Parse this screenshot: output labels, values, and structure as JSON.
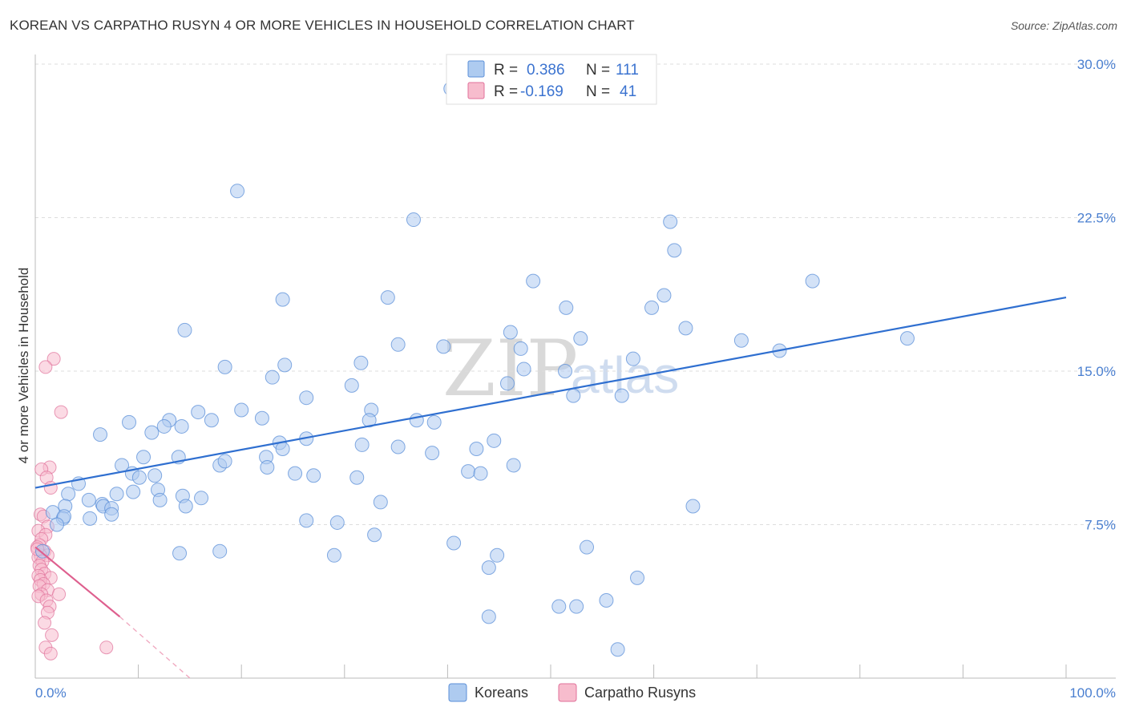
{
  "title": "KOREAN VS CARPATHO RUSYN 4 OR MORE VEHICLES IN HOUSEHOLD CORRELATION CHART",
  "source": "Source: ZipAtlas.com",
  "watermark": {
    "part1": "ZIP",
    "part2": "atlas"
  },
  "colors": {
    "blue": "#5b8fd8",
    "blue_fill": "#aecbf0",
    "pink": "#e0709a",
    "pink_fill": "#f7bccd",
    "tick": "#4a7fd0",
    "grid": "#dddddd"
  },
  "stats": [
    {
      "r_label": "R =",
      "r_value": "0.386",
      "n_label": "N =",
      "n_value": "111"
    },
    {
      "r_label": "R =",
      "r_value": "-0.169",
      "n_label": "N =",
      "n_value": "41"
    }
  ],
  "chart_data": {
    "type": "scatter",
    "xlabel": "",
    "ylabel": "4 or more Vehicles in Household",
    "xlim": [
      0,
      100
    ],
    "ylim": [
      0,
      30
    ],
    "x_tick_labels": [
      "0.0%",
      "100.0%"
    ],
    "y_ticks": [
      7.5,
      15.0,
      22.5,
      30.0
    ],
    "y_tick_labels": [
      "7.5%",
      "15.0%",
      "22.5%",
      "30.0%"
    ],
    "legend": [
      "Koreans",
      "Carpatho Rusyns"
    ],
    "series": [
      {
        "name": "Koreans",
        "r": 0.386,
        "n": 111,
        "trend": {
          "x0": 0,
          "y0": 9.3,
          "x1": 100,
          "y1": 18.6
        },
        "points": [
          [
            40.3,
            28.8
          ],
          [
            19.6,
            23.8
          ],
          [
            36.7,
            22.4
          ],
          [
            61.6,
            22.3
          ],
          [
            62.0,
            20.9
          ],
          [
            75.4,
            19.4
          ],
          [
            48.3,
            19.4
          ],
          [
            61.0,
            18.7
          ],
          [
            34.2,
            18.6
          ],
          [
            24.0,
            18.5
          ],
          [
            51.5,
            18.1
          ],
          [
            59.8,
            18.1
          ],
          [
            63.1,
            17.1
          ],
          [
            68.5,
            16.5
          ],
          [
            14.5,
            17.0
          ],
          [
            46.1,
            16.9
          ],
          [
            84.6,
            16.6
          ],
          [
            52.9,
            16.6
          ],
          [
            35.2,
            16.3
          ],
          [
            39.6,
            16.2
          ],
          [
            47.1,
            16.1
          ],
          [
            72.2,
            16.0
          ],
          [
            58.0,
            15.6
          ],
          [
            31.6,
            15.4
          ],
          [
            24.2,
            15.3
          ],
          [
            47.4,
            15.1
          ],
          [
            51.4,
            15.0
          ],
          [
            18.4,
            15.2
          ],
          [
            23.0,
            14.7
          ],
          [
            45.8,
            14.4
          ],
          [
            30.7,
            14.3
          ],
          [
            56.9,
            13.8
          ],
          [
            52.2,
            13.8
          ],
          [
            26.3,
            13.7
          ],
          [
            32.6,
            13.1
          ],
          [
            20.0,
            13.1
          ],
          [
            15.8,
            13.0
          ],
          [
            32.4,
            12.6
          ],
          [
            37.0,
            12.6
          ],
          [
            13.0,
            12.6
          ],
          [
            22.0,
            12.7
          ],
          [
            17.1,
            12.6
          ],
          [
            38.7,
            12.5
          ],
          [
            9.1,
            12.5
          ],
          [
            12.5,
            12.3
          ],
          [
            14.2,
            12.3
          ],
          [
            11.3,
            12.0
          ],
          [
            26.3,
            11.7
          ],
          [
            6.3,
            11.9
          ],
          [
            31.7,
            11.4
          ],
          [
            35.2,
            11.3
          ],
          [
            23.7,
            11.5
          ],
          [
            24.0,
            11.2
          ],
          [
            22.4,
            10.8
          ],
          [
            38.5,
            11.0
          ],
          [
            44.5,
            11.6
          ],
          [
            42.8,
            11.2
          ],
          [
            46.4,
            10.4
          ],
          [
            10.5,
            10.8
          ],
          [
            13.9,
            10.8
          ],
          [
            8.4,
            10.4
          ],
          [
            9.4,
            10.0
          ],
          [
            17.9,
            10.4
          ],
          [
            18.4,
            10.6
          ],
          [
            25.2,
            10.0
          ],
          [
            22.5,
            10.3
          ],
          [
            42.0,
            10.1
          ],
          [
            43.2,
            10.0
          ],
          [
            11.6,
            9.9
          ],
          [
            10.1,
            9.8
          ],
          [
            27.0,
            9.9
          ],
          [
            31.2,
            9.8
          ],
          [
            4.2,
            9.5
          ],
          [
            3.2,
            9.0
          ],
          [
            11.9,
            9.2
          ],
          [
            9.5,
            9.1
          ],
          [
            14.3,
            8.9
          ],
          [
            16.1,
            8.8
          ],
          [
            7.9,
            9.0
          ],
          [
            33.5,
            8.6
          ],
          [
            5.2,
            8.7
          ],
          [
            6.5,
            8.5
          ],
          [
            6.6,
            8.4
          ],
          [
            7.4,
            8.3
          ],
          [
            2.9,
            8.4
          ],
          [
            1.7,
            8.1
          ],
          [
            2.7,
            7.8
          ],
          [
            14.6,
            8.4
          ],
          [
            12.1,
            8.7
          ],
          [
            7.4,
            8.0
          ],
          [
            2.8,
            7.9
          ],
          [
            5.3,
            7.8
          ],
          [
            26.3,
            7.7
          ],
          [
            2.1,
            7.5
          ],
          [
            29.3,
            7.6
          ],
          [
            32.9,
            7.0
          ],
          [
            17.9,
            6.2
          ],
          [
            29.0,
            6.0
          ],
          [
            44.8,
            6.0
          ],
          [
            40.6,
            6.6
          ],
          [
            44.0,
            5.4
          ],
          [
            53.5,
            6.4
          ],
          [
            63.8,
            8.4
          ],
          [
            58.4,
            4.9
          ],
          [
            55.4,
            3.8
          ],
          [
            52.5,
            3.5
          ],
          [
            50.8,
            3.5
          ],
          [
            44.0,
            3.0
          ],
          [
            56.5,
            1.4
          ],
          [
            14.0,
            6.1
          ],
          [
            0.7,
            6.2
          ]
        ]
      },
      {
        "name": "Carpatho Rusyns",
        "r": -0.169,
        "n": 41,
        "trend": {
          "x0": 0,
          "y0": 6.4,
          "x1": 8.2,
          "y1": 3.0
        },
        "trend_dashed": {
          "x0": 8.2,
          "y0": 3.0,
          "x1": 15,
          "y1": 0.0
        },
        "points": [
          [
            1.8,
            15.6
          ],
          [
            1.0,
            15.2
          ],
          [
            2.5,
            13.0
          ],
          [
            1.4,
            10.3
          ],
          [
            0.6,
            10.2
          ],
          [
            1.1,
            9.8
          ],
          [
            1.5,
            9.3
          ],
          [
            0.5,
            8.0
          ],
          [
            0.8,
            7.9
          ],
          [
            1.2,
            7.4
          ],
          [
            0.3,
            7.2
          ],
          [
            1.0,
            7.0
          ],
          [
            0.6,
            6.8
          ],
          [
            0.4,
            6.5
          ],
          [
            0.2,
            6.4
          ],
          [
            0.9,
            6.2
          ],
          [
            1.2,
            6.0
          ],
          [
            0.5,
            6.0
          ],
          [
            0.3,
            5.9
          ],
          [
            0.7,
            5.7
          ],
          [
            0.4,
            5.5
          ],
          [
            0.6,
            5.3
          ],
          [
            0.9,
            5.1
          ],
          [
            0.3,
            5.0
          ],
          [
            1.5,
            4.9
          ],
          [
            0.5,
            4.8
          ],
          [
            0.8,
            4.6
          ],
          [
            0.4,
            4.5
          ],
          [
            1.2,
            4.3
          ],
          [
            0.6,
            4.1
          ],
          [
            0.3,
            4.0
          ],
          [
            1.1,
            3.8
          ],
          [
            2.3,
            4.1
          ],
          [
            1.4,
            3.5
          ],
          [
            1.2,
            3.2
          ],
          [
            0.9,
            2.7
          ],
          [
            1.6,
            2.1
          ],
          [
            1.0,
            1.5
          ],
          [
            1.5,
            1.2
          ],
          [
            6.9,
            1.5
          ],
          [
            0.2,
            6.3
          ]
        ]
      }
    ]
  }
}
